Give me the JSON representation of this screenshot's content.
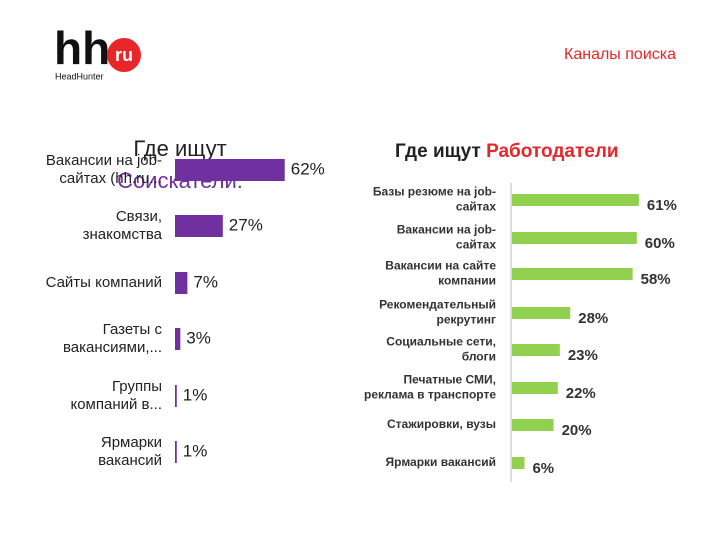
{
  "header": {
    "logo": "hh",
    "logo_badge": "ru",
    "logo_sub": "HeadHunter",
    "title": "Каналы поиска"
  },
  "chart_data": [
    {
      "type": "barh",
      "title": "Где ищут",
      "title_highlight": "Соискатели:",
      "color": "#7030a0",
      "highlight_color": "#7030a0",
      "categories": [
        [
          "Вакансии на job-",
          "сайтах (hh.ru..."
        ],
        [
          "Связи,",
          "знакомства"
        ],
        [
          "Сайты компаний"
        ],
        [
          "Газеты с",
          "вакансиями,..."
        ],
        [
          "Группы",
          "компаний в..."
        ],
        [
          "Ярмарки",
          "вакансий"
        ]
      ],
      "values": [
        62,
        27,
        7,
        3,
        1,
        1
      ],
      "value_labels": [
        "62%",
        "27%",
        "7%",
        "3%",
        "1%",
        "1%"
      ]
    },
    {
      "type": "barh",
      "title": "Где ищут",
      "title_highlight": "Работодатели",
      "color": "#92d050",
      "highlight_color": "#e8262a",
      "categories": [
        [
          "Базы резюме на job-",
          "сайтах"
        ],
        [
          "Вакансии на job-",
          "сайтах"
        ],
        [
          "Вакансии на сайте",
          "компании"
        ],
        [
          "Рекомендательный",
          "рекрутинг"
        ],
        [
          "Социальные сети,",
          "блоги"
        ],
        [
          "Печатные СМИ,",
          "реклама в транспорте"
        ],
        [
          "Стажировки, вузы"
        ],
        [
          "Ярмарки вакансий"
        ]
      ],
      "values": [
        61,
        60,
        58,
        28,
        23,
        22,
        20,
        6
      ],
      "value_labels": [
        "61%",
        "60%",
        "58%",
        "28%",
        "23%",
        "22%",
        "20%",
        "6%"
      ]
    }
  ]
}
